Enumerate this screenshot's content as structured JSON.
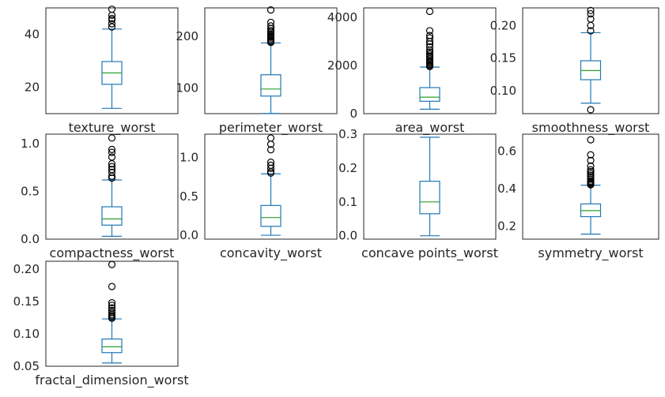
{
  "colors": {
    "box": "#1f77b4",
    "median": "#2ca02c",
    "frame": "#262626",
    "text": "#262626"
  },
  "chart_data": {
    "type": "box",
    "grid": false,
    "charts": [
      {
        "label": "texture_worst",
        "ylim": [
          10,
          50
        ],
        "yticks": [
          {
            "v": 20,
            "t": "20"
          },
          {
            "v": 40,
            "t": "40"
          }
        ],
        "whisker_low": 12.0,
        "q1": 21.1,
        "median": 25.4,
        "q3": 29.7,
        "whisker_high": 42.0,
        "outliers": [
          42.8,
          44.0,
          45.4,
          46.0,
          47.2,
          49.5
        ]
      },
      {
        "label": "perimeter_worst",
        "ylim": [
          50,
          255
        ],
        "yticks": [
          {
            "v": 100,
            "t": "100"
          },
          {
            "v": 200,
            "t": "200"
          }
        ],
        "whisker_low": 50.4,
        "q1": 84.1,
        "median": 97.7,
        "q3": 125.4,
        "whisker_high": 187.0,
        "outliers": [
          188,
          190,
          192,
          195,
          198,
          200,
          202,
          205,
          208,
          211,
          215,
          220,
          227,
          251
        ]
      },
      {
        "label": "area_worst",
        "ylim": [
          0,
          4400
        ],
        "yticks": [
          {
            "v": 0,
            "t": "0"
          },
          {
            "v": 2000,
            "t": "2000"
          },
          {
            "v": 4000,
            "t": "4000"
          }
        ],
        "whisker_low": 185,
        "q1": 515,
        "median": 686,
        "q3": 1084,
        "whisker_high": 1937,
        "outliers": [
          1960,
          2000,
          2050,
          2100,
          2150,
          2200,
          2280,
          2360,
          2400,
          2480,
          2560,
          2640,
          2780,
          2900,
          3000,
          3150,
          3250,
          3450,
          4254
        ]
      },
      {
        "label": "smoothness_worst",
        "ylim": [
          0.065,
          0.227
        ],
        "yticks": [
          {
            "v": 0.1,
            "t": "0.10"
          },
          {
            "v": 0.15,
            "t": "0.15"
          },
          {
            "v": 0.2,
            "t": "0.20"
          }
        ],
        "whisker_low": 0.081,
        "q1": 0.117,
        "median": 0.131,
        "q3": 0.146,
        "whisker_high": 0.189,
        "outliers": [
          0.071,
          0.192,
          0.2,
          0.21,
          0.218,
          0.223
        ]
      },
      {
        "label": "compactness_worst",
        "ylim": [
          0,
          1.1
        ],
        "yticks": [
          {
            "v": 0.0,
            "t": "0.0"
          },
          {
            "v": 0.5,
            "t": "0.5"
          },
          {
            "v": 1.0,
            "t": "1.0"
          }
        ],
        "whisker_low": 0.03,
        "q1": 0.147,
        "median": 0.212,
        "q3": 0.339,
        "whisker_high": 0.62,
        "outliers": [
          0.64,
          0.66,
          0.7,
          0.73,
          0.76,
          0.79,
          0.86,
          0.91,
          0.94,
          1.06
        ]
      },
      {
        "label": "concavity_worst",
        "ylim": [
          -0.05,
          1.3
        ],
        "yticks": [
          {
            "v": 0.0,
            "t": "0.0"
          },
          {
            "v": 0.5,
            "t": "0.5"
          },
          {
            "v": 1.0,
            "t": "1.0"
          }
        ],
        "whisker_low": 0.0,
        "q1": 0.115,
        "median": 0.227,
        "q3": 0.383,
        "whisker_high": 0.79,
        "outliers": [
          0.8,
          0.82,
          0.86,
          0.9,
          0.94,
          1.1,
          1.17,
          1.25
        ]
      },
      {
        "label": "concave points_worst",
        "ylim": [
          -0.01,
          0.3
        ],
        "yticks": [
          {
            "v": 0.0,
            "t": "0.0"
          },
          {
            "v": 0.1,
            "t": "0.1"
          },
          {
            "v": 0.2,
            "t": "0.2"
          },
          {
            "v": 0.3,
            "t": "0.3"
          }
        ],
        "whisker_low": 0.0,
        "q1": 0.065,
        "median": 0.1,
        "q3": 0.161,
        "whisker_high": 0.291,
        "outliers": []
      },
      {
        "label": "symmetry_worst",
        "ylim": [
          0.13,
          0.69
        ],
        "yticks": [
          {
            "v": 0.2,
            "t": "0.2"
          },
          {
            "v": 0.4,
            "t": "0.4"
          },
          {
            "v": 0.6,
            "t": "0.6"
          }
        ],
        "whisker_low": 0.157,
        "q1": 0.25,
        "median": 0.282,
        "q3": 0.318,
        "whisker_high": 0.418,
        "outliers": [
          0.42,
          0.425,
          0.43,
          0.435,
          0.44,
          0.45,
          0.46,
          0.47,
          0.48,
          0.49,
          0.5,
          0.52,
          0.55,
          0.58,
          0.66
        ]
      },
      {
        "label": "fractal_dimension_worst",
        "ylim": [
          0.05,
          0.212
        ],
        "yticks": [
          {
            "v": 0.05,
            "t": "0.05"
          },
          {
            "v": 0.1,
            "t": "0.10"
          },
          {
            "v": 0.15,
            "t": "0.15"
          },
          {
            "v": 0.2,
            "t": "0.20"
          }
        ],
        "whisker_low": 0.055,
        "q1": 0.071,
        "median": 0.08,
        "q3": 0.092,
        "whisker_high": 0.123,
        "outliers": [
          0.124,
          0.126,
          0.128,
          0.13,
          0.133,
          0.136,
          0.14,
          0.144,
          0.148,
          0.173,
          0.207
        ]
      }
    ]
  }
}
